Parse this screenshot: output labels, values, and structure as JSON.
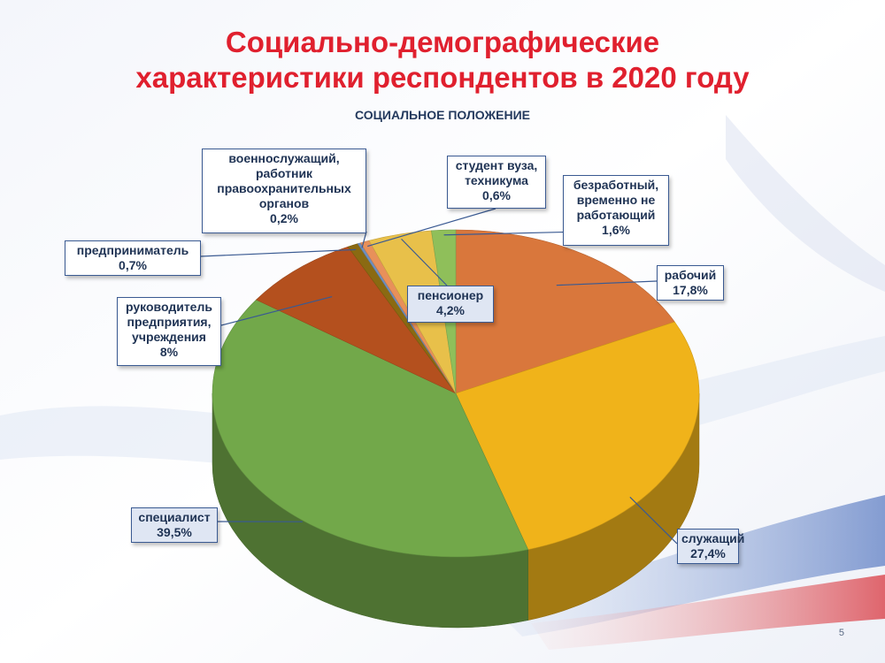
{
  "slide": {
    "title_line1": "Социально-демографические",
    "title_line2": "характеристики респондентов в 2020 году",
    "page_number": "5"
  },
  "chart_data": {
    "type": "pie",
    "title": "СОЦИАЛЬНОЕ ПОЛОЖЕНИЕ",
    "unit": "%",
    "slices": [
      {
        "label_lines": [
          "рабочий"
        ],
        "value": 17.8,
        "value_text": "17,8%",
        "color": "#d9773c"
      },
      {
        "label_lines": [
          "служащий"
        ],
        "value": 27.4,
        "value_text": "27,4%",
        "color": "#f0b31a"
      },
      {
        "label_lines": [
          "специалист"
        ],
        "value": 39.5,
        "value_text": "39,5%",
        "color": "#72a84a"
      },
      {
        "label_lines": [
          "руководитель",
          "предприятия,",
          "учреждения"
        ],
        "value": 8,
        "value_text": "8%",
        "color": "#b4501e"
      },
      {
        "label_lines": [
          "предприниматель"
        ],
        "value": 0.7,
        "value_text": "0,7%",
        "color": "#8a6a12"
      },
      {
        "label_lines": [
          "военнослужащий,",
          "работник",
          "правоохранительных",
          "органов"
        ],
        "value": 0.2,
        "value_text": "0,2%",
        "color": "#6d8fbf"
      },
      {
        "label_lines": [
          "студент вуза,",
          "техникума"
        ],
        "value": 0.6,
        "value_text": "0,6%",
        "color": "#e8905a"
      },
      {
        "label_lines": [
          "пенсионер"
        ],
        "value": 4.2,
        "value_text": "4,2%",
        "color": "#e8c04a"
      },
      {
        "label_lines": [
          "безработный,",
          "временно не",
          "работающий"
        ],
        "value": 1.6,
        "value_text": "1,6%",
        "color": "#8fbf5a"
      }
    ]
  }
}
